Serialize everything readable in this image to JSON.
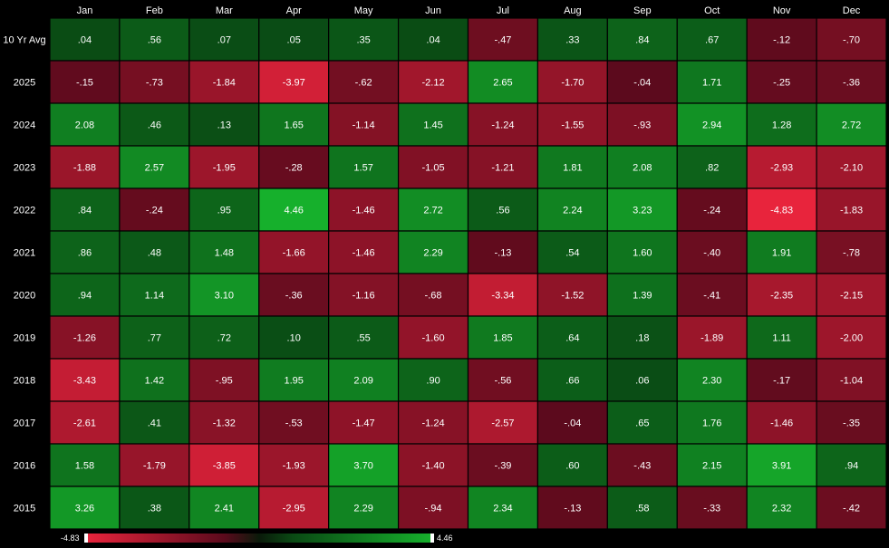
{
  "chart_data": {
    "type": "heatmap",
    "columns": [
      "Jan",
      "Feb",
      "Mar",
      "Apr",
      "May",
      "Jun",
      "Jul",
      "Aug",
      "Sep",
      "Oct",
      "Nov",
      "Dec"
    ],
    "rows": [
      {
        "label": "10 Yr Avg",
        "values": [
          ".04",
          ".56",
          ".07",
          ".05",
          ".35",
          ".04",
          "-.47",
          ".33",
          ".84",
          ".67",
          "-.12",
          "-.70"
        ]
      },
      {
        "label": "2025",
        "values": [
          "-.15",
          "-.73",
          "-1.84",
          "-3.97",
          "-.62",
          "-2.12",
          "2.65",
          "-1.70",
          "-.04",
          "1.71",
          "-.25",
          "-.36"
        ]
      },
      {
        "label": "2024",
        "values": [
          "2.08",
          ".46",
          ".13",
          "1.65",
          "-1.14",
          "1.45",
          "-1.24",
          "-1.55",
          "-.93",
          "2.94",
          "1.28",
          "2.72"
        ]
      },
      {
        "label": "2023",
        "values": [
          "-1.88",
          "2.57",
          "-1.95",
          "-.28",
          "1.57",
          "-1.05",
          "-1.21",
          "1.81",
          "2.08",
          ".82",
          "-2.93",
          "-2.10"
        ]
      },
      {
        "label": "2022",
        "values": [
          ".84",
          "-.24",
          ".95",
          "4.46",
          "-1.46",
          "2.72",
          ".56",
          "2.24",
          "3.23",
          "-.24",
          "-4.83",
          "-1.83"
        ]
      },
      {
        "label": "2021",
        "values": [
          ".86",
          ".48",
          "1.48",
          "-1.66",
          "-1.46",
          "2.29",
          "-.13",
          ".54",
          "1.60",
          "-.40",
          "1.91",
          "-.78"
        ]
      },
      {
        "label": "2020",
        "values": [
          ".94",
          "1.14",
          "3.10",
          "-.36",
          "-1.16",
          "-.68",
          "-3.34",
          "-1.52",
          "1.39",
          "-.41",
          "-2.35",
          "-2.15"
        ]
      },
      {
        "label": "2019",
        "values": [
          "-1.26",
          ".77",
          ".72",
          ".10",
          ".55",
          "-1.60",
          "1.85",
          ".64",
          ".18",
          "-1.89",
          "1.11",
          "-2.00"
        ]
      },
      {
        "label": "2018",
        "values": [
          "-3.43",
          "1.42",
          "-.95",
          "1.95",
          "2.09",
          ".90",
          "-.56",
          ".66",
          ".06",
          "2.30",
          "-.17",
          "-1.04"
        ]
      },
      {
        "label": "2017",
        "values": [
          "-2.61",
          ".41",
          "-1.32",
          "-.53",
          "-1.47",
          "-1.24",
          "-2.57",
          "-.04",
          ".65",
          "1.76",
          "-1.46",
          "-.35"
        ]
      },
      {
        "label": "2016",
        "values": [
          "1.58",
          "-1.79",
          "-3.85",
          "-1.93",
          "3.70",
          "-1.40",
          "-.39",
          ".60",
          "-.43",
          "2.15",
          "3.91",
          ".94"
        ]
      },
      {
        "label": "2015",
        "values": [
          "3.26",
          ".38",
          "2.41",
          "-2.95",
          "2.29",
          "-.94",
          "2.34",
          "-.13",
          ".58",
          "-.33",
          "2.32",
          "-.42"
        ]
      }
    ],
    "scale": {
      "min_label": "-4.83",
      "max_label": "4.46",
      "min": -4.83,
      "max": 4.46
    },
    "colors": {
      "background": "#000000",
      "negative_strong": "#e8243c",
      "negative_weak": "#5a0a1c",
      "positive_weak": "#0a4a14",
      "positive_strong": "#16b02c",
      "text": "#ffffff",
      "header_text": "#ffffff"
    }
  }
}
